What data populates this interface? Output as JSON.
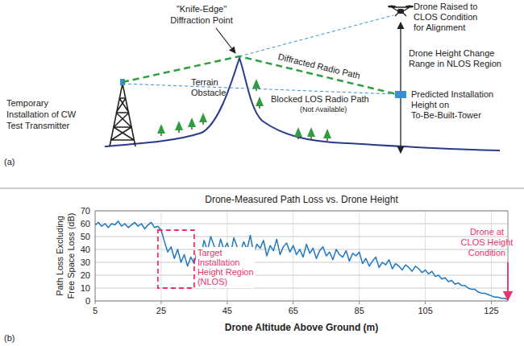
{
  "panel_labels": [
    "(a)",
    "(b)"
  ],
  "diagram": {
    "transmitter": {
      "label": [
        "Temporary",
        "Installation of CW",
        "Test Transmitter"
      ]
    },
    "diffraction_point": {
      "label": [
        "\"Knife-Edge\"",
        "Diffraction Point"
      ]
    },
    "obstacle": {
      "label": [
        "Terrain",
        "Obstacle"
      ]
    },
    "diffracted_path": {
      "label": "Diffracted Radio Path"
    },
    "blocked_path": {
      "label": "Blocked LOS Radio Path",
      "note": "(Not Available)"
    },
    "drone": {
      "label": [
        "Drone Raised to",
        "CLOS Condition",
        "for Alignment"
      ]
    },
    "height_range": {
      "label": [
        "Drone Height Change",
        "Range in NLOS Region"
      ]
    },
    "installation": {
      "label": [
        "Predicted Installation",
        "Height on",
        "To-Be-Built-Tower"
      ]
    }
  },
  "chart_data": {
    "type": "line",
    "title": "Drone-Measured Path Loss vs. Drone Height",
    "x_label": "Drone Altitude Above Ground (m)",
    "y_label": [
      "Path Loss Excluding",
      "Free Space Loss (dB)"
    ],
    "color": "#1f78c1",
    "x": [
      5,
      6,
      7,
      8,
      9,
      10,
      11,
      12,
      13,
      14,
      15,
      16,
      17,
      18,
      19,
      20,
      21,
      22,
      23,
      24,
      25,
      26,
      27,
      28,
      29,
      30,
      31,
      32,
      33,
      34,
      35,
      36,
      37,
      38,
      39,
      40,
      41,
      42,
      43,
      44,
      45,
      46,
      47,
      48,
      49,
      50,
      51,
      52,
      53,
      54,
      55,
      56,
      57,
      58,
      59,
      60,
      61,
      62,
      63,
      64,
      65,
      66,
      67,
      68,
      69,
      70,
      71,
      72,
      73,
      74,
      75,
      76,
      77,
      78,
      79,
      80,
      81,
      82,
      83,
      84,
      85,
      86,
      87,
      88,
      89,
      90,
      91,
      92,
      93,
      94,
      95,
      96,
      97,
      98,
      99,
      100,
      101,
      102,
      103,
      104,
      105,
      106,
      107,
      108,
      109,
      110,
      111,
      112,
      113,
      114,
      115,
      116,
      117,
      118,
      119,
      120,
      121,
      122,
      123,
      124,
      125,
      126,
      127,
      128,
      129,
      130
    ],
    "values": [
      59,
      61,
      58,
      60,
      57,
      60,
      59,
      62,
      58,
      60,
      57,
      59,
      61,
      58,
      60,
      56,
      59,
      61,
      57,
      58,
      55,
      46,
      38,
      42,
      33,
      40,
      30,
      36,
      27,
      34,
      29,
      41,
      35,
      47,
      39,
      50,
      43,
      37,
      48,
      40,
      45,
      36,
      49,
      42,
      38,
      46,
      40,
      51,
      37,
      44,
      41,
      47,
      35,
      43,
      39,
      48,
      36,
      42,
      45,
      38,
      43,
      36,
      40,
      34,
      44,
      37,
      41,
      33,
      39,
      42,
      35,
      38,
      32,
      40,
      36,
      34,
      39,
      31,
      37,
      35,
      38,
      29,
      33,
      27,
      31,
      34,
      26,
      30,
      28,
      32,
      25,
      29,
      27,
      24,
      28,
      26,
      23,
      27,
      25,
      22,
      24,
      21,
      23,
      19,
      20,
      17,
      18,
      15,
      16,
      13,
      14,
      12,
      12,
      10,
      9,
      9,
      7,
      6,
      6,
      5,
      4,
      3,
      3,
      2,
      2,
      1
    ],
    "xlim": [
      5,
      130
    ],
    "ylim": [
      0,
      70
    ],
    "xticks": [
      5,
      25,
      45,
      65,
      85,
      105,
      125
    ],
    "yticks": [
      0,
      10,
      20,
      30,
      40,
      50,
      60,
      70
    ],
    "grid": true,
    "annotations": [
      {
        "text": [
          "Target",
          "Installation",
          "Height Region",
          "(NLOS)"
        ],
        "x_range": [
          24,
          35
        ],
        "y_range": [
          10,
          55
        ],
        "color": "#e8336d"
      },
      {
        "text": [
          "Drone at",
          "CLOS Height",
          "Condition"
        ],
        "x": 130,
        "y": 0,
        "color": "#e8336d"
      }
    ]
  }
}
